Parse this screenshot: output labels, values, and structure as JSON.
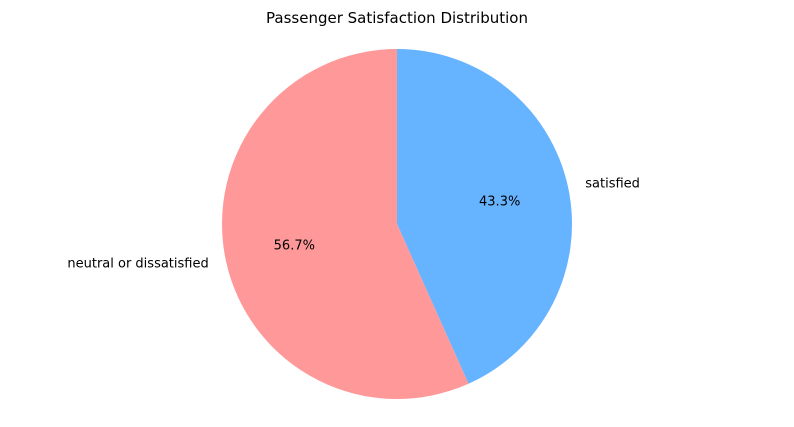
{
  "chart_data": {
    "type": "pie",
    "title": "Passenger Satisfaction Distribution",
    "slices": [
      {
        "label": "satisfied",
        "value": 43.3,
        "pct_label": "43.3%",
        "color": "#66b3ff"
      },
      {
        "label": "neutral or dissatisfied",
        "value": 56.7,
        "pct_label": "56.7%",
        "color": "#ff9999"
      }
    ],
    "start_angle_deg": 90,
    "direction": "clockwise",
    "legend": "none"
  }
}
